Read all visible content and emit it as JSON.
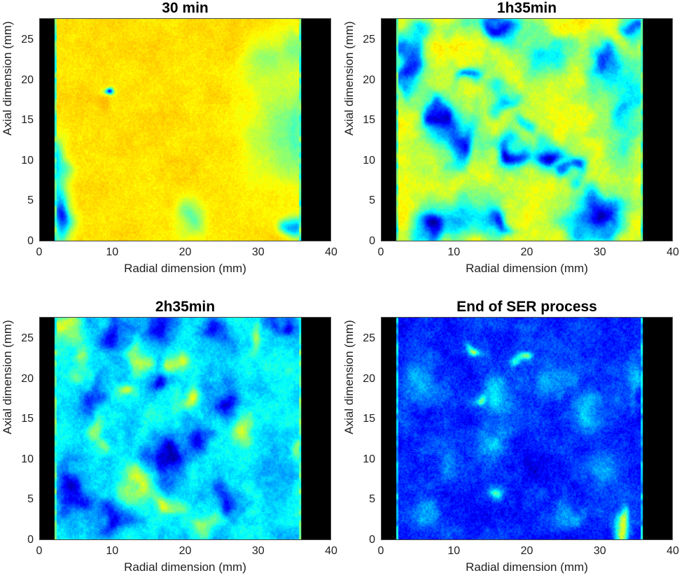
{
  "figure": {
    "background": "#ffffff",
    "text_color": "#1f1f1f",
    "axis_color": "#444444"
  },
  "chart_data": {
    "type": "heatmap",
    "layout": "2x2",
    "colormap": "jet",
    "xlabel": "Radial dimension (mm)",
    "ylabel": "Axial dimension (mm)",
    "x_ticks": [
      0,
      10,
      20,
      30,
      40
    ],
    "y_ticks": [
      0,
      5,
      10,
      15,
      20,
      25
    ],
    "x_range": [
      0,
      40
    ],
    "y_range": [
      0,
      27.7
    ],
    "sample_x_range": [
      2,
      36
    ],
    "outside_sample_color": "#000000",
    "value_scale_note": "normalized echogenicity 0=dark blue (low) to 1=red (high), jet colormap",
    "panels": [
      {
        "title": "30 min",
        "base": 0.655,
        "noise": 0.025,
        "speckle": 0.045,
        "warp": 0.8,
        "edge": 0.45,
        "seed": 7,
        "blobs": [
          [
            33,
            13,
            4,
            6,
            0.5
          ],
          [
            31.5,
            22.5,
            3,
            3,
            0.52
          ],
          [
            20.5,
            2.8,
            1.8,
            2.2,
            0.47
          ],
          [
            9,
            18.5,
            0.75,
            0.7,
            0.15
          ],
          [
            8.2,
            17.1,
            0.9,
            0.7,
            0.7
          ],
          [
            2.6,
            3,
            1.6,
            3.5,
            0.15
          ],
          [
            2.4,
            9.5,
            1.2,
            3.5,
            0.33
          ],
          [
            34.8,
            1.2,
            1.4,
            1.4,
            0.28
          ],
          [
            35.3,
            13,
            1.2,
            5,
            0.45
          ],
          [
            35,
            24,
            1.5,
            2.5,
            0.5
          ]
        ]
      },
      {
        "title": "1h35min",
        "base": 0.6,
        "noise": 0.075,
        "speckle": 0.05,
        "warp": 1.3,
        "edge": 0.45,
        "seed": 21,
        "blobs": [
          [
            33.5,
            17,
            3,
            5.5,
            0.3
          ],
          [
            4,
            22,
            2,
            4,
            0.3
          ],
          [
            11,
            3.5,
            4.5,
            2.5,
            0.35
          ],
          [
            29,
            4,
            4.5,
            3,
            0.3
          ],
          [
            22.5,
            23.5,
            3.5,
            2.2,
            0.35
          ],
          [
            9.5,
            14,
            3,
            3.5,
            0.3
          ],
          [
            16.5,
            18,
            2.2,
            1.8,
            0.32
          ],
          [
            5,
            25.5,
            1.8,
            1.5,
            0.35
          ],
          [
            15.5,
            26.8,
            3.5,
            1.8,
            0.12
          ],
          [
            30.5,
            22,
            2.2,
            2.4,
            0.15
          ],
          [
            3.5,
            21.5,
            1.4,
            2.4,
            0.18
          ],
          [
            8,
            16.2,
            1.7,
            1.9,
            0.12
          ],
          [
            11,
            12.5,
            2.2,
            2.2,
            0.15
          ],
          [
            17.5,
            10.5,
            2.1,
            2.1,
            0.07
          ],
          [
            22.5,
            10.8,
            2.3,
            1.9,
            0.07
          ],
          [
            26.5,
            9.3,
            1.9,
            1.5,
            0.16
          ],
          [
            20,
            14.8,
            1.6,
            1.1,
            0.35
          ],
          [
            7.5,
            1.8,
            2.2,
            1.7,
            0.08
          ],
          [
            15.5,
            2,
            2,
            1.5,
            0.15
          ],
          [
            30.5,
            2.3,
            2.6,
            2,
            0.08
          ],
          [
            34.8,
            26.5,
            1.6,
            1.6,
            0.2
          ],
          [
            12,
            21,
            1.6,
            1.4,
            0.25
          ]
        ]
      },
      {
        "title": "2h35min",
        "base": 0.36,
        "noise": 0.09,
        "speckle": 0.06,
        "warp": 1.3,
        "edge": 0.45,
        "seed": 33,
        "blobs": [
          [
            4,
            26.5,
            2.5,
            1.8,
            0.58
          ],
          [
            10,
            26,
            2.6,
            2,
            0.12
          ],
          [
            17,
            26.5,
            2.2,
            1.6,
            0.14
          ],
          [
            24,
            26,
            2.2,
            1.8,
            0.12
          ],
          [
            29.5,
            25,
            1.3,
            2.2,
            0.58
          ],
          [
            33.5,
            27,
            2,
            1.4,
            0.12
          ],
          [
            13.5,
            22.5,
            1.3,
            1.1,
            0.6
          ],
          [
            18.5,
            22,
            1.3,
            1,
            0.6
          ],
          [
            7,
            18.5,
            2.2,
            2,
            0.14
          ],
          [
            12,
            19,
            1.1,
            1.2,
            0.55
          ],
          [
            16.5,
            19.5,
            1.6,
            1.3,
            0.12
          ],
          [
            20.5,
            17.5,
            1.3,
            1.6,
            0.62
          ],
          [
            25,
            17,
            2.2,
            2,
            0.1
          ],
          [
            28.5,
            13,
            1.1,
            2.4,
            0.55
          ],
          [
            17.5,
            10,
            2.6,
            2.6,
            0.06
          ],
          [
            21.5,
            12.5,
            1.6,
            1.4,
            0.1
          ],
          [
            13.8,
            6.5,
            2,
            1.8,
            0.6
          ],
          [
            17.5,
            4.2,
            1.9,
            1.4,
            0.6
          ],
          [
            4,
            6,
            2.6,
            4,
            0.1
          ],
          [
            8,
            13,
            1.1,
            1.6,
            0.55
          ],
          [
            10,
            2.5,
            2.2,
            1.6,
            0.14
          ],
          [
            25.5,
            5,
            2.2,
            2,
            0.12
          ],
          [
            22.8,
            1.5,
            1.6,
            1,
            0.55
          ],
          [
            30.5,
            19,
            2,
            1.6,
            0.3
          ],
          [
            35.6,
            12,
            0.9,
            4,
            0.55
          ],
          [
            33,
            8,
            2,
            2.6,
            0.28
          ],
          [
            31.5,
            3,
            2,
            1.8,
            0.3
          ],
          [
            6,
            22,
            1,
            1.5,
            0.5
          ]
        ]
      },
      {
        "title": "End of SER process",
        "base": 0.16,
        "noise": 0.075,
        "speckle": 0.09,
        "warp": 1.0,
        "edge": 0.32,
        "seed": 44,
        "blobs": [
          [
            5,
            20,
            2.2,
            3,
            0.3
          ],
          [
            9,
            10,
            2.2,
            3,
            0.24
          ],
          [
            16,
            17,
            2.6,
            3,
            0.33
          ],
          [
            15.5,
            12,
            2,
            2,
            0.3
          ],
          [
            24,
            20,
            2.2,
            2,
            0.3
          ],
          [
            28.5,
            16,
            2.8,
            3,
            0.32
          ],
          [
            31,
            9,
            2.2,
            2.2,
            0.28
          ],
          [
            26,
            3,
            2.2,
            1.6,
            0.3
          ],
          [
            6,
            3,
            1.6,
            1.6,
            0.28
          ],
          [
            13,
            23.5,
            1,
            0.8,
            0.55
          ],
          [
            19.5,
            23,
            0.8,
            0.8,
            0.5
          ],
          [
            13.5,
            17.5,
            0.8,
            0.8,
            0.5
          ],
          [
            16,
            6,
            1,
            1,
            0.45
          ],
          [
            21,
            9,
            2,
            2,
            0.1
          ],
          [
            33,
            1.5,
            0.8,
            1.6,
            0.58
          ],
          [
            35,
            20,
            1,
            3,
            0.3
          ],
          [
            20,
            27,
            2,
            1.2,
            0.22
          ]
        ]
      }
    ]
  }
}
